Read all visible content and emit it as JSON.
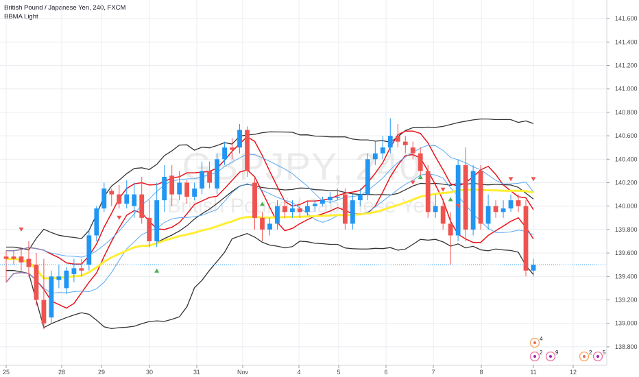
{
  "legend": {
    "symbol_line": "British Pound / Japanese Yen, 240, FXCM",
    "indicator": "BBMA Light"
  },
  "watermark": {
    "ticker": "GBPJPY, 240",
    "name": "British Pound / Japanese Yen"
  },
  "colors": {
    "up": "#2196f3",
    "down": "#ef5350",
    "outer_band": "#333333",
    "mid_band": "#e8141b",
    "inner_band": "#5aa9f0",
    "ema": "#ffee33",
    "grid": "#e9ecf0",
    "arrow_up": "#4caf50",
    "arrow_down": "#ef5350",
    "price_line": "#2196f3"
  },
  "chart_data": {
    "type": "candlestick",
    "title": "British Pound / Japanese Yen, 240, FXCM",
    "indicator": "BBMA Light",
    "ylim": [
      138.7,
      141.7
    ],
    "y_ticks": [
      "141.600",
      "141.400",
      "141.200",
      "141.000",
      "140.800",
      "140.600",
      "140.400",
      "140.200",
      "140.000",
      "139.800",
      "139.600",
      "139.400",
      "139.200",
      "139.000",
      "138.800"
    ],
    "x_ticks": [
      "25",
      "28",
      "29",
      "30",
      "31",
      "Nov",
      "4",
      "5",
      "6",
      "7",
      "8",
      "11",
      "12"
    ],
    "current_price": 139.5,
    "candles": [
      [
        139.57,
        139.55,
        139.62,
        139.35
      ],
      [
        139.57,
        139.55,
        139.62,
        139.5
      ],
      [
        139.57,
        139.52,
        139.65,
        139.45
      ],
      [
        139.55,
        139.48,
        139.7,
        139.4
      ],
      [
        139.5,
        139.2,
        139.6,
        139.15
      ],
      [
        139.2,
        139.0,
        139.55,
        138.95
      ],
      [
        139.05,
        139.4,
        139.45,
        139.0
      ],
      [
        139.37,
        139.4,
        139.5,
        139.3
      ],
      [
        139.3,
        139.45,
        139.48,
        139.25
      ],
      [
        139.42,
        139.47,
        139.55,
        139.35
      ],
      [
        139.47,
        139.45,
        139.55,
        139.4
      ],
      [
        139.5,
        139.75,
        139.8,
        139.45
      ],
      [
        139.75,
        139.98,
        140.0,
        139.7
      ],
      [
        139.98,
        140.15,
        140.2,
        139.95
      ],
      [
        140.13,
        140.1,
        140.15,
        140.0
      ],
      [
        140.1,
        140.02,
        140.18,
        139.98
      ],
      [
        140.02,
        140.1,
        140.22,
        139.98
      ],
      [
        140.0,
        140.1,
        140.2,
        139.9
      ],
      [
        140.1,
        139.9,
        140.25,
        139.85
      ],
      [
        139.9,
        139.7,
        140.05,
        139.65
      ],
      [
        139.7,
        140.05,
        140.2,
        139.65
      ],
      [
        140.05,
        140.25,
        140.35,
        139.95
      ],
      [
        140.26,
        140.1,
        140.35,
        140.0
      ],
      [
        140.1,
        140.2,
        140.3,
        140.05
      ],
      [
        140.2,
        140.08,
        140.22,
        140.02
      ],
      [
        140.08,
        140.15,
        140.2,
        140.05
      ],
      [
        140.15,
        140.3,
        140.38,
        140.1
      ],
      [
        140.3,
        140.2,
        140.38,
        140.15
      ],
      [
        140.15,
        140.4,
        140.45,
        140.1
      ],
      [
        140.4,
        140.5,
        140.55,
        140.35
      ],
      [
        140.5,
        140.48,
        140.58,
        140.4
      ],
      [
        140.5,
        140.65,
        140.7,
        140.45
      ],
      [
        140.65,
        140.3,
        140.68,
        140.25
      ],
      [
        140.2,
        139.9,
        140.25,
        139.8
      ],
      [
        139.9,
        139.8,
        139.95,
        139.7
      ],
      [
        139.8,
        139.85,
        139.9,
        139.75
      ],
      [
        139.85,
        140.0,
        140.05,
        139.8
      ],
      [
        140.0,
        139.95,
        140.05,
        139.9
      ],
      [
        139.95,
        139.98,
        140.05,
        139.9
      ],
      [
        139.98,
        139.95,
        140.02,
        139.9
      ],
      [
        139.95,
        140.0,
        140.05,
        139.92
      ],
      [
        140.0,
        140.02,
        140.05,
        139.95
      ],
      [
        140.02,
        140.05,
        140.08,
        140.0
      ],
      [
        140.05,
        140.08,
        140.12,
        140.02
      ],
      [
        140.08,
        140.08,
        140.15,
        140.05
      ],
      [
        140.1,
        139.85,
        140.15,
        139.8
      ],
      [
        139.85,
        140.05,
        140.1,
        139.8
      ],
      [
        140.05,
        140.1,
        140.15,
        140.0
      ],
      [
        140.1,
        140.4,
        140.45,
        140.05
      ],
      [
        140.4,
        140.45,
        140.55,
        140.35
      ],
      [
        140.45,
        140.5,
        140.6,
        140.4
      ],
      [
        140.5,
        140.6,
        140.75,
        140.45
      ],
      [
        140.6,
        140.55,
        140.7,
        140.5
      ],
      [
        140.55,
        140.52,
        140.6,
        140.45
      ],
      [
        140.5,
        140.45,
        140.55,
        140.4
      ],
      [
        140.45,
        140.3,
        140.5,
        140.25
      ],
      [
        140.3,
        139.95,
        140.35,
        139.9
      ],
      [
        139.95,
        140.0,
        140.1,
        139.9
      ],
      [
        140.0,
        139.85,
        140.05,
        139.8
      ],
      [
        139.85,
        139.75,
        139.95,
        139.5
      ],
      [
        139.75,
        140.35,
        140.4,
        139.7
      ],
      [
        140.35,
        139.8,
        140.5,
        139.7
      ],
      [
        139.8,
        140.3,
        140.35,
        139.75
      ],
      [
        140.3,
        139.85,
        140.35,
        139.8
      ],
      [
        139.85,
        140.0,
        140.1,
        139.8
      ],
      [
        140.0,
        139.95,
        140.05,
        139.9
      ],
      [
        139.95,
        139.98,
        140.05,
        139.9
      ],
      [
        139.98,
        140.05,
        140.1,
        139.95
      ],
      [
        140.05,
        140.0,
        140.1,
        139.95
      ],
      [
        140.0,
        139.45,
        140.05,
        139.4
      ],
      [
        139.45,
        139.5,
        139.55,
        139.4
      ]
    ],
    "signals_up": [
      [
        20,
        139.45
      ],
      [
        34,
        140.02
      ],
      [
        55,
        140.25
      ],
      [
        59,
        140.06
      ]
    ],
    "signals_down": [
      [
        2,
        139.8
      ],
      [
        15,
        139.9
      ],
      [
        39,
        139.96
      ],
      [
        54,
        140.2
      ],
      [
        58,
        140.14
      ],
      [
        60,
        140.0
      ],
      [
        67,
        140.23
      ],
      [
        70,
        140.23
      ]
    ]
  },
  "events": [
    {
      "count": "4",
      "kind": "earnings"
    },
    {
      "count": "2",
      "kind": "flag"
    },
    {
      "count": "9",
      "kind": "flag"
    },
    {
      "count": "2",
      "kind": "earnings"
    },
    {
      "count": "5",
      "kind": "flag"
    }
  ]
}
